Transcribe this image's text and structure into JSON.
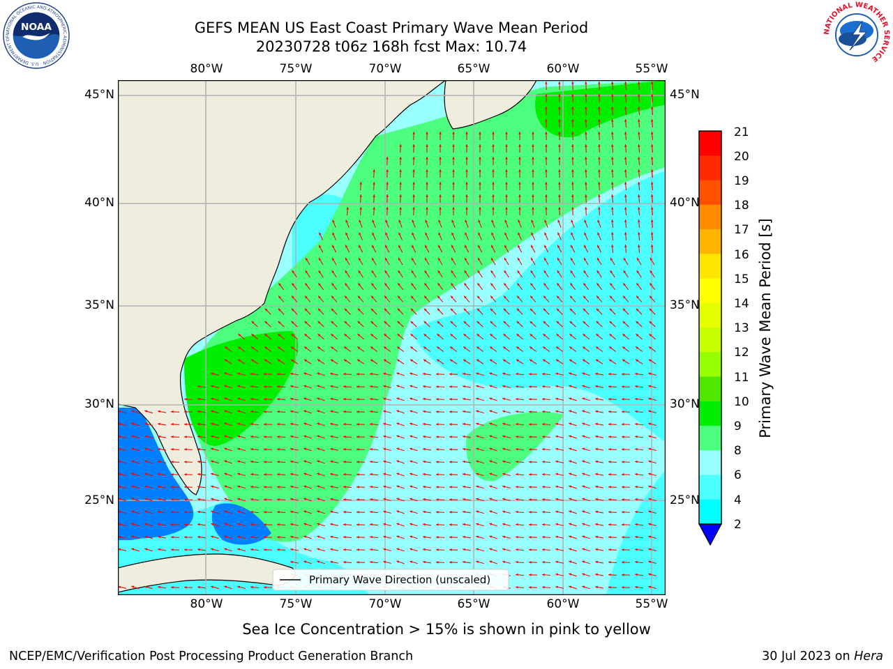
{
  "title": {
    "line1": "GEFS MEAN US East Coast Primary Wave Mean Period",
    "line2": "20230728 t06z 168h fcst   Max: 10.74"
  },
  "map": {
    "lon_ticks": [
      "80°W",
      "75°W",
      "70°W",
      "65°W",
      "60°W",
      "55°W"
    ],
    "lat_ticks": [
      "45°N",
      "40°N",
      "35°N",
      "30°N",
      "25°N"
    ],
    "legend_label": "Primary Wave Direction (unscaled)",
    "colors": {
      "land": "#efedde",
      "lt_cyan": "#99ffff",
      "cyan": "#4cffff",
      "lt_green": "#4cff7f",
      "green": "#00ee00",
      "blue": "#0080ff",
      "arrow": "#ff0000",
      "grid": "#b0b0b0"
    }
  },
  "colorbar": {
    "label": "Primary Wave Mean Period [s]",
    "ticks": [
      "21",
      "20",
      "19",
      "18",
      "17",
      "16",
      "15",
      "14",
      "13",
      "12",
      "11",
      "10",
      "9",
      "8",
      "6",
      "4",
      "2"
    ],
    "colors": [
      "#ff0000",
      "#ff2800",
      "#ff5000",
      "#ff8c00",
      "#ffb400",
      "#ffe600",
      "#ffff00",
      "#e6ff00",
      "#c8ff00",
      "#96ff00",
      "#50e600",
      "#00ee00",
      "#4cff7f",
      "#99ffff",
      "#4cffff",
      "#00ffff",
      "#0080ff"
    ],
    "underflow_color": "#0000ff"
  },
  "subtitle": "Sea Ice Concentration > 15% is shown in pink to yellow",
  "footer": {
    "left": "NCEP/EMC/Verification Post Processing Product Generation Branch",
    "date": "30 Jul 2023 on ",
    "host": "Hera"
  },
  "logos": {
    "noaa": {
      "text": "NOAA",
      "ring_text": "NATIONAL OCEANIC AND ATMOSPHERIC ADMINISTRATION · U.S. DEPARTMENT OF COMMERCE"
    },
    "nws": {
      "ring_text": "NATIONAL WEATHER SERVICE"
    }
  }
}
